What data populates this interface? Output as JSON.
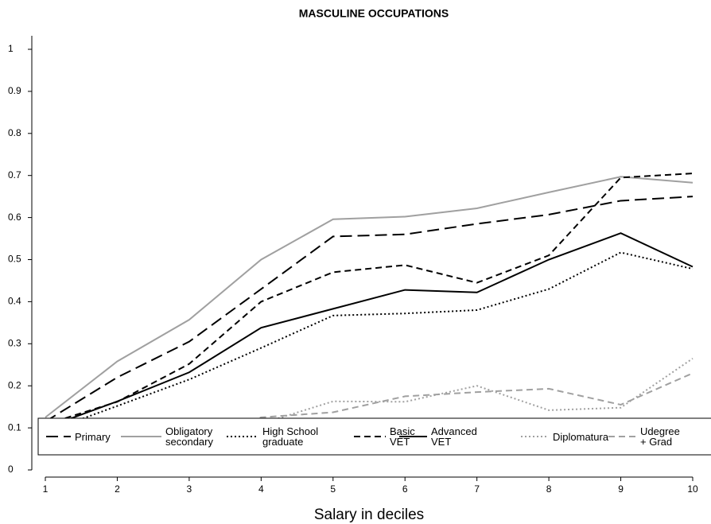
{
  "chart_data": {
    "type": "line",
    "title": "MASCULINE OCCUPATIONS",
    "x_label": "Salary in deciles",
    "x": [
      1,
      2,
      3,
      4,
      5,
      6,
      7,
      8,
      9,
      10
    ],
    "xlim": [
      1,
      10
    ],
    "xticks": [
      1,
      2,
      3,
      4,
      5,
      6,
      7,
      8,
      9,
      10
    ],
    "ylim": [
      0,
      1
    ],
    "yticks": [
      0,
      0.1,
      0.2,
      0.3,
      0.4,
      0.5,
      0.6,
      0.7,
      0.8,
      0.9,
      1
    ],
    "legend": "bottom",
    "series": [
      {
        "name": "Primary",
        "color": "#000000",
        "dash": "longdash",
        "values": [
          0.115,
          0.22,
          0.305,
          0.43,
          0.555,
          0.56,
          0.585,
          0.607,
          0.64,
          0.65
        ]
      },
      {
        "name": "Obligatory secondary",
        "color": "#a0a0a0",
        "dash": "solid",
        "values": [
          0.125,
          0.258,
          0.357,
          0.5,
          0.596,
          0.602,
          0.622,
          0.66,
          0.697,
          0.683
        ]
      },
      {
        "name": "High School graduate",
        "color": "#000000",
        "dash": "dot",
        "values": [
          0.09,
          0.152,
          0.215,
          0.29,
          0.367,
          0.372,
          0.38,
          0.43,
          0.517,
          0.478
        ]
      },
      {
        "name": "Basic VET",
        "color": "#000000",
        "dash": "dash",
        "values": [
          0.108,
          0.162,
          0.252,
          0.4,
          0.47,
          0.487,
          0.445,
          0.51,
          0.695,
          0.705
        ]
      },
      {
        "name": "Advanced VET",
        "color": "#000000",
        "dash": "solid",
        "values": [
          0.1,
          0.163,
          0.232,
          0.338,
          0.383,
          0.428,
          0.422,
          0.5,
          0.563,
          0.483
        ]
      },
      {
        "name": "Diplomatura",
        "color": "#a0a0a0",
        "dash": "dot",
        "values": [
          0.06,
          0.08,
          0.09,
          0.11,
          0.163,
          0.162,
          0.2,
          0.142,
          0.148,
          0.265
        ]
      },
      {
        "name": "Udegree + Grad",
        "color": "#a0a0a0",
        "dash": "dash",
        "values": [
          0.06,
          0.072,
          0.08,
          0.125,
          0.137,
          0.175,
          0.185,
          0.193,
          0.155,
          0.23
        ]
      }
    ]
  }
}
